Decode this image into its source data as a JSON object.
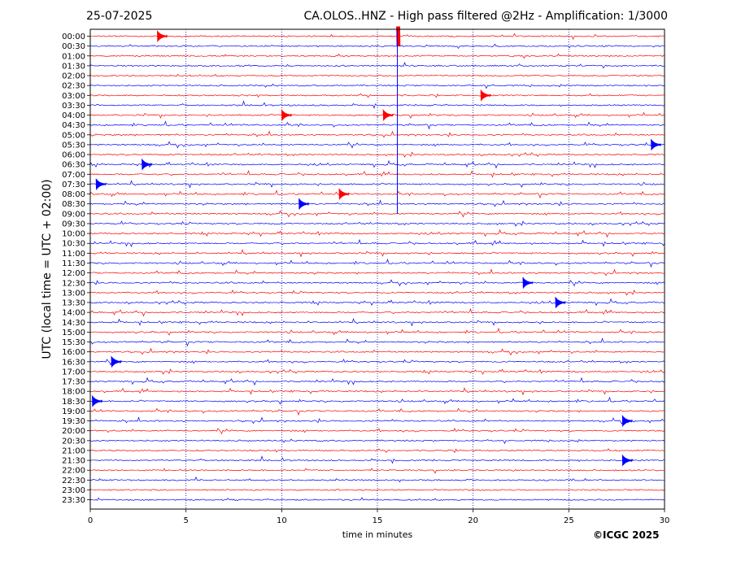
{
  "header": {
    "date": "25-07-2025",
    "title": "CA.OLOS..HNZ - High pass filtered @2Hz - Amplification: 1/3000"
  },
  "footer": {
    "copyright": "©ICGC 2025"
  },
  "colors": {
    "trace_a": "#ff0000",
    "trace_b": "#0000ff",
    "frame": "#000000",
    "grid": "#0000aa"
  },
  "chart_data": {
    "type": "line",
    "title": "CA.OLOS..HNZ - High pass filtered @2Hz - Amplification: 1/3000",
    "xlabel": "time in minutes",
    "ylabel": "UTC (local time = UTC + 02:00)",
    "xlim": [
      0,
      30
    ],
    "x_ticks": [
      "0",
      "5",
      "10",
      "15",
      "20",
      "25",
      "30"
    ],
    "y_ticks": [
      "00:00",
      "00:30",
      "01:00",
      "01:30",
      "02:00",
      "02:30",
      "03:00",
      "03:30",
      "04:00",
      "04:30",
      "05:00",
      "05:30",
      "06:00",
      "06:30",
      "07:00",
      "07:30",
      "08:00",
      "08:30",
      "09:00",
      "09:30",
      "10:00",
      "10:30",
      "11:00",
      "11:30",
      "12:00",
      "12:30",
      "13:00",
      "13:30",
      "14:00",
      "14:30",
      "15:00",
      "15:30",
      "16:00",
      "16:30",
      "17:00",
      "17:30",
      "18:00",
      "18:30",
      "19:00",
      "19:30",
      "20:00",
      "20:30",
      "21:00",
      "21:30",
      "22:00",
      "22:30",
      "23:00",
      "23:30"
    ],
    "grid": "vertical dotted lines at each 5 minutes",
    "trace_colors": "alternating red and blue per 30-minute row",
    "events": [
      {
        "row": "00:00",
        "minute": 3.5
      },
      {
        "row": "00:00",
        "minute": 16.0
      },
      {
        "row": "03:00",
        "minute": 20.4
      },
      {
        "row": "04:00",
        "minute": 15.3
      },
      {
        "row": "04:00",
        "minute": 10.0
      },
      {
        "row": "05:30",
        "minute": 29.3
      },
      {
        "row": "06:30",
        "minute": 2.7
      },
      {
        "row": "07:30",
        "minute": 0.3
      },
      {
        "row": "08:00",
        "minute": 13.0
      },
      {
        "row": "08:30",
        "minute": 10.9
      },
      {
        "row": "12:30",
        "minute": 22.6
      },
      {
        "row": "13:30",
        "minute": 24.3
      },
      {
        "row": "16:30",
        "minute": 1.1
      },
      {
        "row": "18:30",
        "minute": 0.1
      },
      {
        "row": "19:30",
        "minute": 27.8
      },
      {
        "row": "21:30",
        "minute": 27.8
      }
    ]
  }
}
